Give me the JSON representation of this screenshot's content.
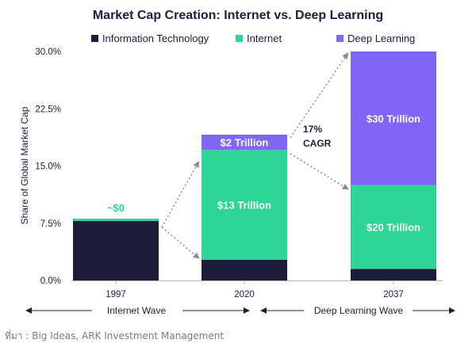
{
  "chart_data": {
    "type": "bar",
    "stacked": true,
    "title": "Market Cap Creation: Internet vs. Deep Learning",
    "ylabel": "Share of Global Market Cap",
    "xlabel": "",
    "ylim": [
      0,
      30
    ],
    "yticks": [
      "0.0%",
      "7.5%",
      "15.0%",
      "22.5%",
      "30.0%"
    ],
    "ytick_values": [
      0,
      7.5,
      15,
      22.5,
      30
    ],
    "categories": [
      "1997",
      "2020",
      "2037"
    ],
    "series": [
      {
        "name": "Information Technology",
        "color": "#1d1d3b",
        "values": [
          7.8,
          2.7,
          1.5
        ]
      },
      {
        "name": "Internet",
        "color": "#2fd594",
        "values": [
          0.3,
          14.4,
          11.0
        ]
      },
      {
        "name": "Deep Learning",
        "color": "#8066f5",
        "values": [
          0,
          2.0,
          17.5
        ]
      }
    ],
    "segment_labels": [
      {
        "category": "1997",
        "series": "Internet",
        "text": "~$0"
      },
      {
        "category": "2020",
        "series": "Internet",
        "text": "$13 Trillion"
      },
      {
        "category": "2020",
        "series": "Deep Learning",
        "text": "$2 Trillion"
      },
      {
        "category": "2037",
        "series": "Internet",
        "text": "$20 Trillion"
      },
      {
        "category": "2037",
        "series": "Deep Learning",
        "text": "$30 Trillion"
      }
    ],
    "annotation": [
      "17%",
      "CAGR"
    ],
    "legend_position": "top",
    "grid": false
  },
  "waves": {
    "internet": "Internet Wave",
    "deep_learning": "Deep Learning Wave"
  },
  "source": "ที่มา : Big Ideas, ARK Investment Management"
}
